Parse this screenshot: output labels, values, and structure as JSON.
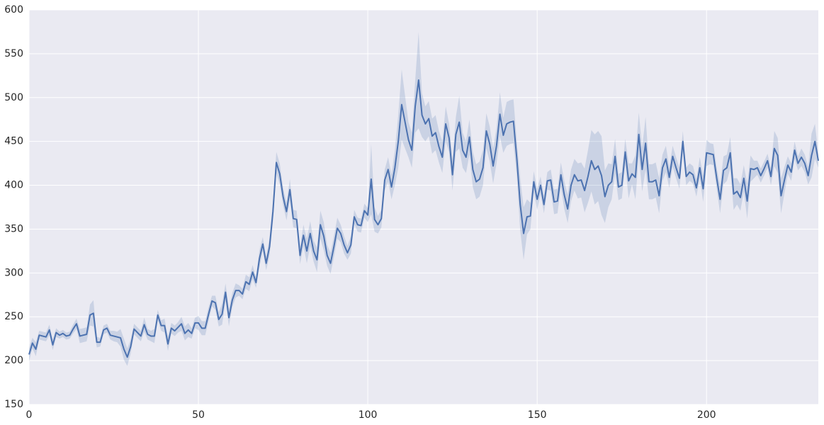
{
  "chart_data": {
    "type": "line",
    "grid": true,
    "background": "#eaeaf2",
    "xlim": [
      0,
      233
    ],
    "xticks": [
      0,
      50,
      100,
      150,
      200
    ],
    "ylim": [
      150,
      600
    ],
    "yticks": [
      150,
      200,
      250,
      300,
      350,
      400,
      450,
      500,
      550,
      600
    ],
    "x": [
      0,
      1,
      2,
      3,
      4,
      5,
      6,
      7,
      8,
      9,
      10,
      11,
      12,
      13,
      14,
      15,
      16,
      17,
      18,
      19,
      20,
      21,
      22,
      23,
      24,
      25,
      26,
      27,
      28,
      29,
      30,
      31,
      32,
      33,
      34,
      35,
      36,
      37,
      38,
      39,
      40,
      41,
      42,
      43,
      44,
      45,
      46,
      47,
      48,
      49,
      50,
      51,
      52,
      53,
      54,
      55,
      56,
      57,
      58,
      59,
      60,
      61,
      62,
      63,
      64,
      65,
      66,
      67,
      68,
      69,
      70,
      71,
      72,
      73,
      74,
      75,
      76,
      77,
      78,
      79,
      80,
      81,
      82,
      83,
      84,
      85,
      86,
      87,
      88,
      89,
      90,
      91,
      92,
      93,
      94,
      95,
      96,
      97,
      98,
      99,
      100,
      101,
      102,
      103,
      104,
      105,
      106,
      107,
      108,
      109,
      110,
      111,
      112,
      113,
      114,
      115,
      116,
      117,
      118,
      119,
      120,
      121,
      122,
      123,
      124,
      125,
      126,
      127,
      128,
      129,
      130,
      131,
      132,
      133,
      134,
      135,
      136,
      137,
      138,
      139,
      140,
      141,
      142,
      143,
      144,
      145,
      146,
      147,
      148,
      149,
      150,
      151,
      152,
      153,
      154,
      155,
      156,
      157,
      158,
      159,
      160,
      161,
      162,
      163,
      164,
      165,
      166,
      167,
      168,
      169,
      170,
      171,
      172,
      173,
      174,
      175,
      176,
      177,
      178,
      179,
      180,
      181,
      182,
      183,
      184,
      185,
      186,
      187,
      188,
      189,
      190,
      191,
      192,
      193,
      194,
      195,
      196,
      197,
      198,
      199,
      200,
      201,
      202,
      203,
      204,
      205,
      206,
      207,
      208,
      209,
      210,
      211,
      212,
      213,
      214,
      215,
      216,
      217,
      218,
      219,
      220,
      221,
      222,
      223,
      224,
      225,
      226,
      227,
      228,
      229,
      230,
      231,
      232,
      233
    ],
    "series": [
      {
        "color": "#4c72b0",
        "values": [
          207,
          220,
          213,
          229,
          228,
          227,
          235,
          218,
          232,
          229,
          231,
          228,
          229,
          236,
          242,
          228,
          229,
          230,
          252,
          254,
          221,
          221,
          235,
          237,
          229,
          228,
          227,
          226,
          213,
          204,
          216,
          236,
          232,
          228,
          241,
          230,
          228,
          228,
          252,
          240,
          240,
          219,
          237,
          234,
          238,
          242,
          231,
          235,
          231,
          243,
          243,
          237,
          237,
          253,
          268,
          266,
          247,
          253,
          278,
          249,
          269,
          280,
          280,
          276,
          290,
          287,
          301,
          289,
          316,
          333,
          311,
          330,
          370,
          426,
          413,
          387,
          370,
          395,
          362,
          361,
          320,
          343,
          325,
          345,
          325,
          315,
          355,
          342,
          320,
          311,
          330,
          351,
          345,
          332,
          323,
          332,
          364,
          355,
          354,
          371,
          366,
          407,
          361,
          355,
          362,
          406,
          418,
          398,
          420,
          450,
          492,
          472,
          452,
          440,
          490,
          520,
          480,
          470,
          476,
          456,
          460,
          444,
          432,
          470,
          454,
          412,
          458,
          472,
          440,
          432,
          455,
          418,
          404,
          407,
          420,
          462,
          447,
          422,
          445,
          481,
          457,
          470,
          472,
          473,
          430,
          378,
          345,
          364,
          365,
          404,
          384,
          400,
          378,
          405,
          406,
          381,
          382,
          412,
          389,
          373,
          400,
          412,
          405,
          406,
          394,
          410,
          428,
          418,
          422,
          411,
          387,
          400,
          404,
          433,
          398,
          400,
          438,
          405,
          413,
          409,
          458,
          418,
          448,
          404,
          404,
          406,
          388,
          420,
          430,
          409,
          433,
          420,
          408,
          450,
          410,
          415,
          412,
          397,
          420,
          396,
          437,
          436,
          435,
          408,
          384,
          417,
          420,
          437,
          390,
          393,
          386,
          408,
          382,
          419,
          418,
          420,
          411,
          419,
          428,
          410,
          442,
          434,
          388,
          406,
          423,
          415,
          440,
          425,
          432,
          425,
          411,
          434,
          450,
          428
        ],
        "error": [
          8,
          6,
          8,
          5,
          5,
          5,
          6,
          6,
          5,
          4,
          4,
          4,
          4,
          5,
          6,
          8,
          8,
          8,
          12,
          15,
          6,
          5,
          5,
          5,
          5,
          6,
          6,
          10,
          12,
          10,
          8,
          6,
          6,
          6,
          8,
          6,
          6,
          8,
          6,
          6,
          8,
          8,
          6,
          6,
          6,
          8,
          8,
          8,
          6,
          6,
          8,
          8,
          8,
          8,
          6,
          8,
          8,
          12,
          10,
          10,
          8,
          8,
          6,
          6,
          8,
          8,
          8,
          6,
          10,
          8,
          8,
          10,
          12,
          12,
          12,
          10,
          10,
          12,
          10,
          10,
          10,
          12,
          14,
          14,
          12,
          14,
          16,
          16,
          12,
          12,
          12,
          12,
          10,
          10,
          8,
          10,
          8,
          8,
          8,
          8,
          8,
          40,
          14,
          10,
          10,
          12,
          14,
          14,
          20,
          30,
          40,
          30,
          20,
          20,
          30,
          55,
          25,
          20,
          20,
          20,
          20,
          18,
          18,
          20,
          16,
          18,
          20,
          30,
          20,
          18,
          20,
          20,
          20,
          20,
          20,
          20,
          20,
          20,
          20,
          25,
          20,
          25,
          25,
          25,
          20,
          30,
          30,
          20,
          15,
          12,
          12,
          10,
          10,
          10,
          12,
          14,
          14,
          14,
          16,
          16,
          18,
          18,
          20,
          20,
          25,
          30,
          35,
          40,
          40,
          45,
          30,
          25,
          20,
          20,
          15,
          15,
          15,
          20,
          12,
          25,
          25,
          25,
          30,
          20,
          20,
          20,
          20,
          15,
          15,
          12,
          12,
          12,
          12,
          12,
          10,
          10,
          10,
          10,
          12,
          15,
          15,
          12,
          12,
          12,
          16,
          16,
          15,
          18,
          18,
          15,
          15,
          15,
          20,
          15,
          10,
          8,
          8,
          8,
          8,
          10,
          20,
          20,
          20,
          15,
          10,
          10,
          10,
          8,
          10,
          10,
          10,
          25,
          20,
          8
        ]
      }
    ]
  }
}
